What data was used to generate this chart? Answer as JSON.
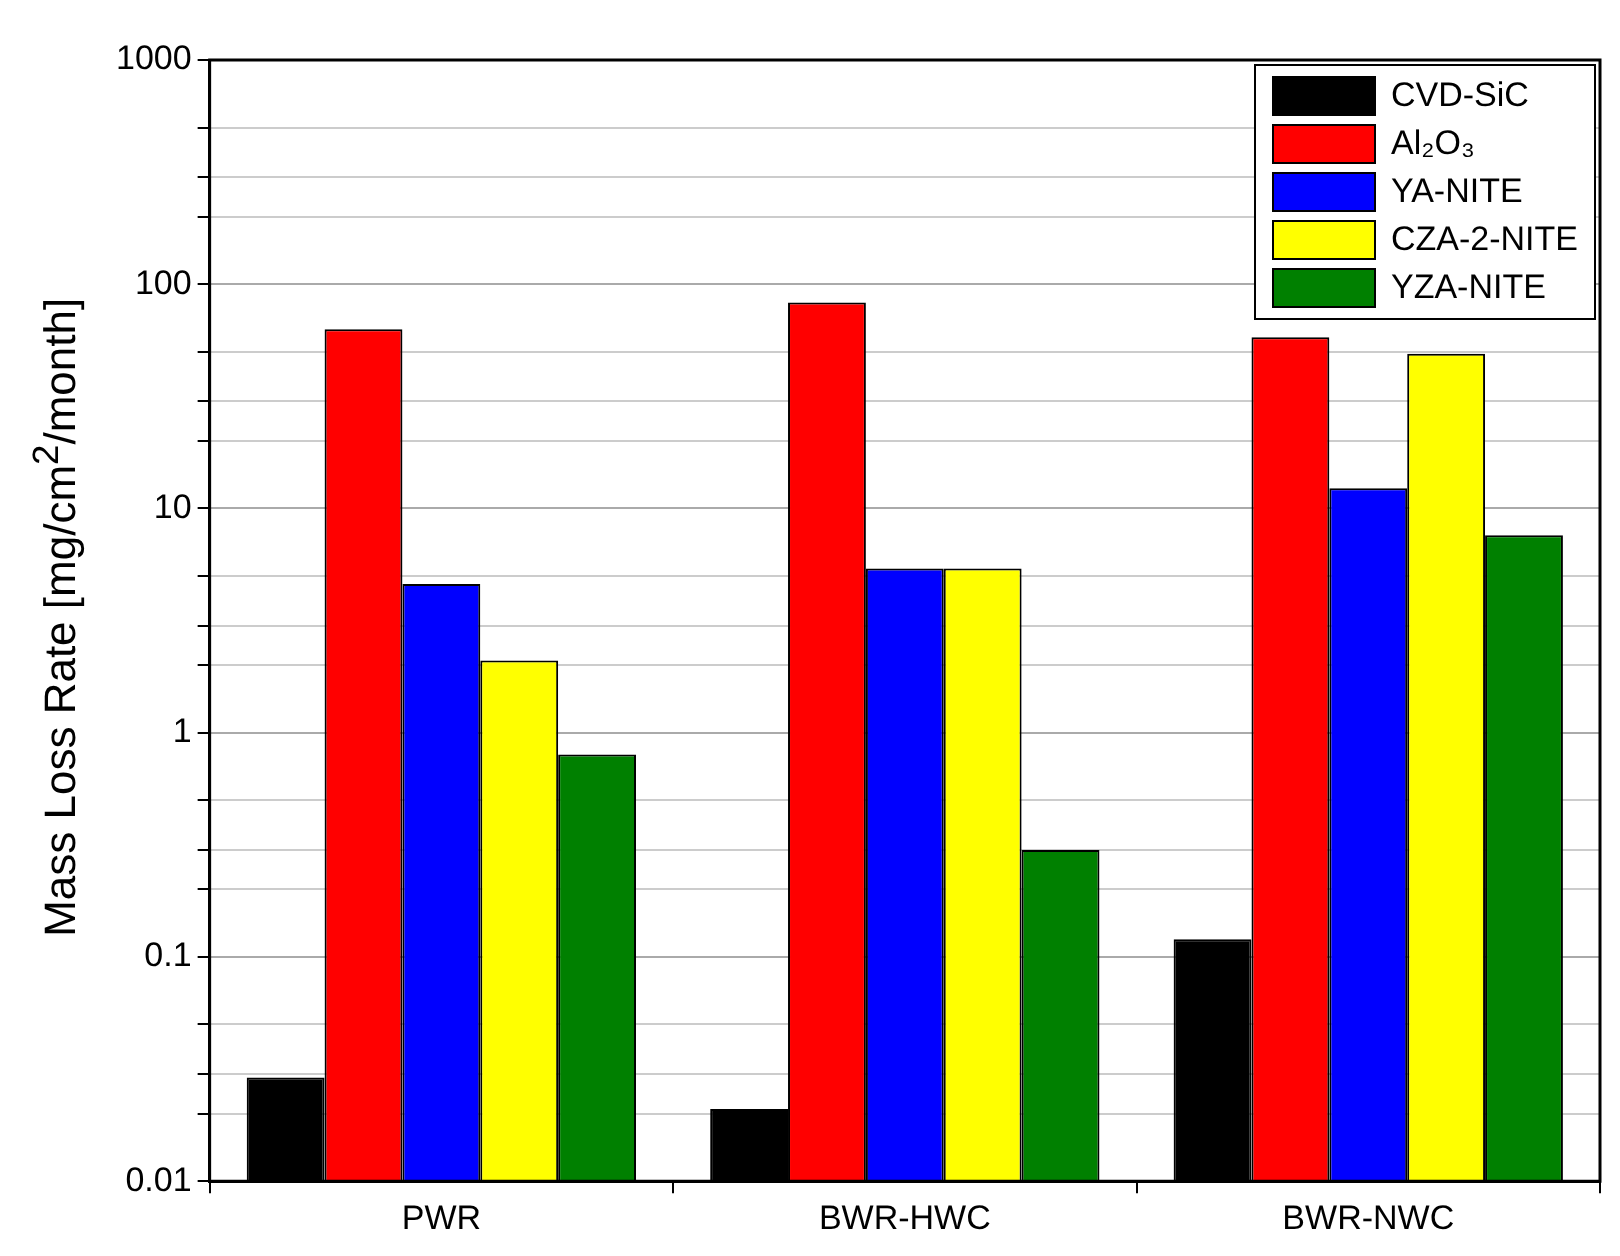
{
  "chart_data": {
    "type": "bar",
    "ylabel": "Mass Loss Rate [mg/cm$^{2}$/month]",
    "categories": [
      "PWR",
      "BWR-HWC",
      "BWR-NWC"
    ],
    "series": [
      {
        "name": "CVD-SiC",
        "color": "#000000",
        "values": [
          0.029,
          0.021,
          0.12
        ]
      },
      {
        "name": "Al₂O₃",
        "color": "#ff0000",
        "values": [
          63,
          83,
          58
        ]
      },
      {
        "name": "YA-NITE",
        "color": "#0000ff",
        "values": [
          4.6,
          5.4,
          12.3
        ]
      },
      {
        "name": "CZA-2-NITE",
        "color": "#ffff00",
        "values": [
          2.1,
          5.4,
          49
        ]
      },
      {
        "name": "YZA-NITE",
        "color": "#008000",
        "values": [
          0.8,
          0.3,
          7.6
        ]
      }
    ],
    "log": true,
    "ylim": [
      0.01,
      1000
    ],
    "yticks": [
      0.01,
      {
        "value": 0.02,
        "label": null
      },
      {
        "value": 0.03,
        "label": null
      },
      {
        "value": 0.05,
        "label": null
      },
      0.1,
      {
        "value": 0.2,
        "label": null
      },
      {
        "value": 0.3,
        "label": null
      },
      {
        "value": 0.5,
        "label": null
      },
      1,
      {
        "value": 2,
        "label": null
      },
      {
        "value": 3,
        "label": null
      },
      {
        "value": 5,
        "label": null
      },
      10,
      {
        "value": 20,
        "label": null
      },
      {
        "value": 30,
        "label": null
      },
      {
        "value": 50,
        "label": null
      },
      100,
      {
        "value": 200,
        "label": null
      },
      {
        "value": 300,
        "label": null
      },
      {
        "value": 500,
        "label": null
      },
      1000
    ],
    "grid": true,
    "legend": "top right"
  }
}
